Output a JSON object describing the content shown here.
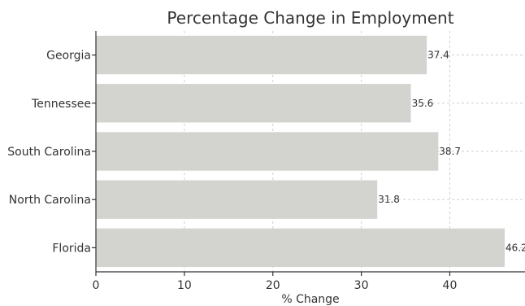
{
  "chart_data": {
    "type": "bar",
    "orientation": "horizontal",
    "title": "Percentage Change in Employment",
    "xlabel": "% Change",
    "ylabel": "",
    "categories": [
      "Georgia",
      "Tennessee",
      "South Carolina",
      "North Carolina",
      "Florida"
    ],
    "values": [
      37.4,
      35.6,
      38.7,
      31.8,
      46.2
    ],
    "xlim": [
      0,
      48.5
    ],
    "xticks": [
      0,
      10,
      20,
      30,
      40
    ],
    "grid": true,
    "bar_color": "#d3d4d0"
  }
}
